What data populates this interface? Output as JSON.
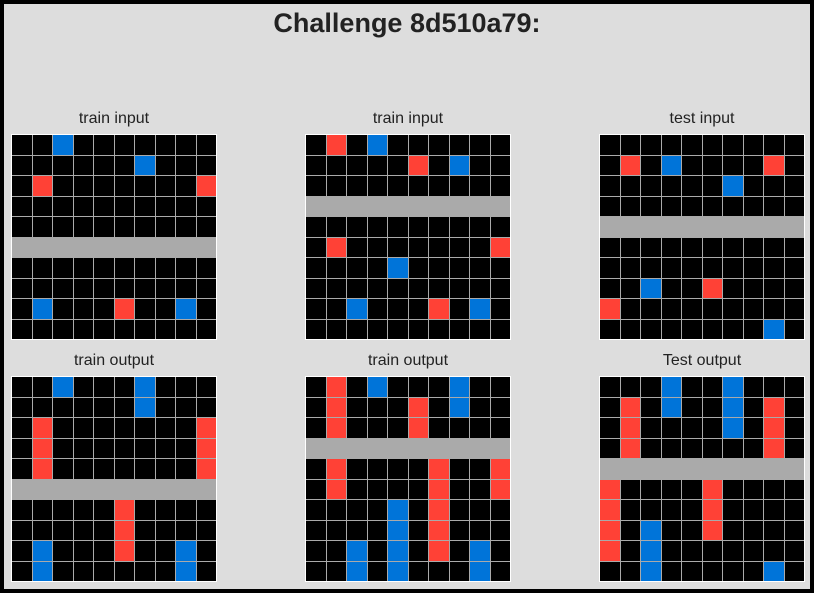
{
  "title": "Challenge 8d510a79:",
  "palette": {
    "0": "#000000",
    "1": "#0074d9",
    "2": "#ff4136",
    "5": "#aaaaaa"
  },
  "panels": [
    {
      "id": "train-input-1",
      "label": "train input",
      "grid": [
        [
          0,
          0,
          1,
          0,
          0,
          0,
          0,
          0,
          0,
          0
        ],
        [
          0,
          0,
          0,
          0,
          0,
          0,
          1,
          0,
          0,
          0
        ],
        [
          0,
          2,
          0,
          0,
          0,
          0,
          0,
          0,
          0,
          2
        ],
        [
          0,
          0,
          0,
          0,
          0,
          0,
          0,
          0,
          0,
          0
        ],
        [
          0,
          0,
          0,
          0,
          0,
          0,
          0,
          0,
          0,
          0
        ],
        [
          5,
          5,
          5,
          5,
          5,
          5,
          5,
          5,
          5,
          5
        ],
        [
          0,
          0,
          0,
          0,
          0,
          0,
          0,
          0,
          0,
          0
        ],
        [
          0,
          0,
          0,
          0,
          0,
          0,
          0,
          0,
          0,
          0
        ],
        [
          0,
          1,
          0,
          0,
          0,
          2,
          0,
          0,
          1,
          0
        ],
        [
          0,
          0,
          0,
          0,
          0,
          0,
          0,
          0,
          0,
          0
        ]
      ]
    },
    {
      "id": "train-input-2",
      "label": "train input",
      "grid": [
        [
          0,
          2,
          0,
          1,
          0,
          0,
          0,
          0,
          0,
          0
        ],
        [
          0,
          0,
          0,
          0,
          0,
          2,
          0,
          1,
          0,
          0
        ],
        [
          0,
          0,
          0,
          0,
          0,
          0,
          0,
          0,
          0,
          0
        ],
        [
          5,
          5,
          5,
          5,
          5,
          5,
          5,
          5,
          5,
          5
        ],
        [
          0,
          0,
          0,
          0,
          0,
          0,
          0,
          0,
          0,
          0
        ],
        [
          0,
          2,
          0,
          0,
          0,
          0,
          0,
          0,
          0,
          2
        ],
        [
          0,
          0,
          0,
          0,
          1,
          0,
          0,
          0,
          0,
          0
        ],
        [
          0,
          0,
          0,
          0,
          0,
          0,
          0,
          0,
          0,
          0
        ],
        [
          0,
          0,
          1,
          0,
          0,
          0,
          2,
          0,
          1,
          0
        ],
        [
          0,
          0,
          0,
          0,
          0,
          0,
          0,
          0,
          0,
          0
        ]
      ]
    },
    {
      "id": "test-input",
      "label": "test input",
      "grid": [
        [
          0,
          0,
          0,
          0,
          0,
          0,
          0,
          0,
          0,
          0
        ],
        [
          0,
          2,
          0,
          1,
          0,
          0,
          0,
          0,
          2,
          0
        ],
        [
          0,
          0,
          0,
          0,
          0,
          0,
          1,
          0,
          0,
          0
        ],
        [
          0,
          0,
          0,
          0,
          0,
          0,
          0,
          0,
          0,
          0
        ],
        [
          5,
          5,
          5,
          5,
          5,
          5,
          5,
          5,
          5,
          5
        ],
        [
          0,
          0,
          0,
          0,
          0,
          0,
          0,
          0,
          0,
          0
        ],
        [
          0,
          0,
          0,
          0,
          0,
          0,
          0,
          0,
          0,
          0
        ],
        [
          0,
          0,
          1,
          0,
          0,
          2,
          0,
          0,
          0,
          0
        ],
        [
          2,
          0,
          0,
          0,
          0,
          0,
          0,
          0,
          0,
          0
        ],
        [
          0,
          0,
          0,
          0,
          0,
          0,
          0,
          0,
          1,
          0
        ]
      ]
    },
    {
      "id": "train-output-1",
      "label": "train output",
      "grid": [
        [
          0,
          0,
          1,
          0,
          0,
          0,
          1,
          0,
          0,
          0
        ],
        [
          0,
          0,
          0,
          0,
          0,
          0,
          1,
          0,
          0,
          0
        ],
        [
          0,
          2,
          0,
          0,
          0,
          0,
          0,
          0,
          0,
          2
        ],
        [
          0,
          2,
          0,
          0,
          0,
          0,
          0,
          0,
          0,
          2
        ],
        [
          0,
          2,
          0,
          0,
          0,
          0,
          0,
          0,
          0,
          2
        ],
        [
          5,
          5,
          5,
          5,
          5,
          5,
          5,
          5,
          5,
          5
        ],
        [
          0,
          0,
          0,
          0,
          0,
          2,
          0,
          0,
          0,
          0
        ],
        [
          0,
          0,
          0,
          0,
          0,
          2,
          0,
          0,
          0,
          0
        ],
        [
          0,
          1,
          0,
          0,
          0,
          2,
          0,
          0,
          1,
          0
        ],
        [
          0,
          1,
          0,
          0,
          0,
          0,
          0,
          0,
          1,
          0
        ]
      ]
    },
    {
      "id": "train-output-2",
      "label": "train output",
      "grid": [
        [
          0,
          2,
          0,
          1,
          0,
          0,
          0,
          1,
          0,
          0
        ],
        [
          0,
          2,
          0,
          0,
          0,
          2,
          0,
          1,
          0,
          0
        ],
        [
          0,
          2,
          0,
          0,
          0,
          2,
          0,
          0,
          0,
          0
        ],
        [
          5,
          5,
          5,
          5,
          5,
          5,
          5,
          5,
          5,
          5
        ],
        [
          0,
          2,
          0,
          0,
          0,
          0,
          2,
          0,
          0,
          2
        ],
        [
          0,
          2,
          0,
          0,
          0,
          0,
          2,
          0,
          0,
          2
        ],
        [
          0,
          0,
          0,
          0,
          1,
          0,
          2,
          0,
          0,
          0
        ],
        [
          0,
          0,
          0,
          0,
          1,
          0,
          2,
          0,
          0,
          0
        ],
        [
          0,
          0,
          1,
          0,
          1,
          0,
          2,
          0,
          1,
          0
        ],
        [
          0,
          0,
          1,
          0,
          1,
          0,
          0,
          0,
          1,
          0
        ]
      ]
    },
    {
      "id": "test-output",
      "label": "Test output",
      "grid": [
        [
          0,
          0,
          0,
          1,
          0,
          0,
          1,
          0,
          0,
          0
        ],
        [
          0,
          2,
          0,
          1,
          0,
          0,
          1,
          0,
          2,
          0
        ],
        [
          0,
          2,
          0,
          0,
          0,
          0,
          1,
          0,
          2,
          0
        ],
        [
          0,
          2,
          0,
          0,
          0,
          0,
          0,
          0,
          2,
          0
        ],
        [
          5,
          5,
          5,
          5,
          5,
          5,
          5,
          5,
          5,
          5
        ],
        [
          2,
          0,
          0,
          0,
          0,
          2,
          0,
          0,
          0,
          0
        ],
        [
          2,
          0,
          0,
          0,
          0,
          2,
          0,
          0,
          0,
          0
        ],
        [
          2,
          0,
          1,
          0,
          0,
          2,
          0,
          0,
          0,
          0
        ],
        [
          2,
          0,
          1,
          0,
          0,
          0,
          0,
          0,
          0,
          0
        ],
        [
          0,
          0,
          1,
          0,
          0,
          0,
          0,
          0,
          1,
          0
        ]
      ]
    }
  ]
}
